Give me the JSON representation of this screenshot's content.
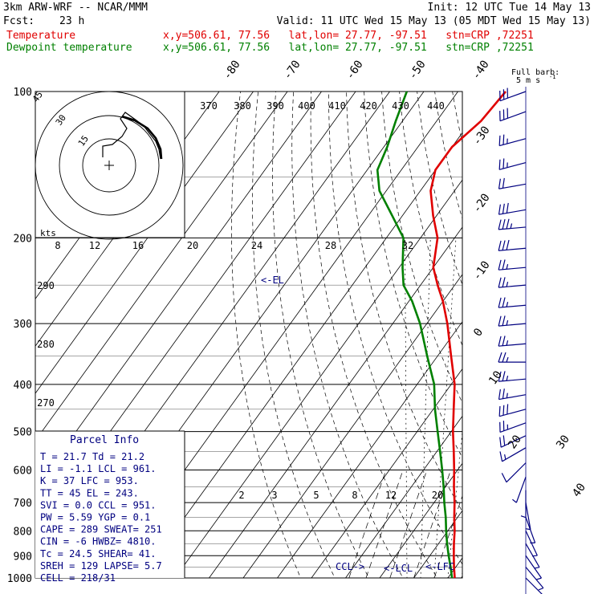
{
  "header": {
    "model": "3km ARW-WRF -- NCAR/MMM",
    "init": "Init: 12 UTC Tue 14 May 13",
    "fcst_label": "Fcst:",
    "fcst_value": "23 h",
    "valid": "Valid: 11 UTC Wed 15 May 13 (05 MDT Wed 15 May 13)",
    "temp_label": "Temperature",
    "temp_info": "x,y=506.61, 77.56   lat,lon= 27.77, -97.51   stn=CRP ,72251",
    "dew_label": "Dewpoint temperature",
    "dew_info": "x,y=506.61, 77.56   lat,lon= 27.77, -97.51   stn=CRP ,72251"
  },
  "colors": {
    "temperature": "#e00000",
    "dewpoint": "#008000",
    "annot": "#000080",
    "grid": "#000000"
  },
  "barb_key": {
    "line1": "Full barb:",
    "line2": "5 m s",
    "sup": "-1"
  },
  "parcel": {
    "title": "Parcel Info",
    "rows": [
      "T  =    21.7  Td =  21.2",
      "LI =    -1.1  LCL =  961.",
      "K  =     37  LFC = 953.",
      "TT =     45  EL  = 243.",
      "SVI =    0.0  CCL = 951.",
      "PW =   5.59  YGP =  0.1",
      "CAPE =   289  SWEAT= 251",
      "CIN =     -6  HWBZ= 4810.",
      "Tc =   24.5  SHEAR= 41.",
      "SREH =   129  LAPSE= 5.7",
      "CELL = 218/31"
    ]
  },
  "annotations": {
    "el": "<-EL",
    "ccl": "CCL->",
    "lcl": "<-LCL",
    "lfc": "<-LFC"
  },
  "hodograph": {
    "rings": [
      "15",
      "30",
      "45"
    ],
    "units": "kts"
  },
  "chart_data": {
    "type": "skew-t",
    "pressure_levels": [
      100,
      200,
      300,
      400,
      500,
      600,
      700,
      800,
      900,
      1000
    ],
    "isotherm_labels": [
      "-80",
      "-70",
      "-60",
      "-50",
      "-40",
      "-30",
      "-20",
      "-10",
      "0",
      "10",
      "20",
      "30",
      "40"
    ],
    "dry_adiabat_labels": [
      "370",
      "380",
      "390",
      "400",
      "410",
      "420",
      "430",
      "440"
    ],
    "theta_left_labels": [
      "290",
      "280",
      "270"
    ],
    "mixing_ratio_labels": [
      "2",
      "3",
      "5",
      "8",
      "12",
      "20"
    ],
    "wetbulb_labels": [
      "8",
      "12",
      "16",
      "20",
      "24",
      "28",
      "32"
    ],
    "temperature": [
      {
        "p": 1000,
        "t": 22.0
      },
      {
        "p": 950,
        "t": 19.5
      },
      {
        "p": 900,
        "t": 17.0
      },
      {
        "p": 850,
        "t": 14.5
      },
      {
        "p": 800,
        "t": 12.0
      },
      {
        "p": 750,
        "t": 9.0
      },
      {
        "p": 700,
        "t": 6.0
      },
      {
        "p": 650,
        "t": 2.5
      },
      {
        "p": 600,
        "t": -1.0
      },
      {
        "p": 550,
        "t": -5.0
      },
      {
        "p": 500,
        "t": -9.5
      },
      {
        "p": 450,
        "t": -14.0
      },
      {
        "p": 400,
        "t": -19.0
      },
      {
        "p": 350,
        "t": -26.0
      },
      {
        "p": 300,
        "t": -34.0
      },
      {
        "p": 270,
        "t": -40.0
      },
      {
        "p": 250,
        "t": -45.0
      },
      {
        "p": 230,
        "t": -50.0
      },
      {
        "p": 200,
        "t": -55.0
      },
      {
        "p": 180,
        "t": -61.0
      },
      {
        "p": 160,
        "t": -67.0
      },
      {
        "p": 145,
        "t": -70.0
      },
      {
        "p": 130,
        "t": -70.0
      },
      {
        "p": 115,
        "t": -67.0
      },
      {
        "p": 100,
        "t": -66.0
      }
    ],
    "dewpoint": [
      {
        "p": 1000,
        "t": 21.2
      },
      {
        "p": 950,
        "t": 18.5
      },
      {
        "p": 900,
        "t": 15.5
      },
      {
        "p": 850,
        "t": 12.5
      },
      {
        "p": 800,
        "t": 9.5
      },
      {
        "p": 750,
        "t": 6.5
      },
      {
        "p": 700,
        "t": 3.0
      },
      {
        "p": 650,
        "t": -0.5
      },
      {
        "p": 600,
        "t": -4.5
      },
      {
        "p": 550,
        "t": -9.0
      },
      {
        "p": 500,
        "t": -14.0
      },
      {
        "p": 450,
        "t": -19.5
      },
      {
        "p": 400,
        "t": -25.0
      },
      {
        "p": 350,
        "t": -33.0
      },
      {
        "p": 300,
        "t": -42.0
      },
      {
        "p": 270,
        "t": -49.0
      },
      {
        "p": 250,
        "t": -55.0
      },
      {
        "p": 230,
        "t": -59.0
      },
      {
        "p": 200,
        "t": -65.0
      },
      {
        "p": 180,
        "t": -73.0
      },
      {
        "p": 160,
        "t": -82.0
      },
      {
        "p": 145,
        "t": -87.0
      },
      {
        "p": 130,
        "t": -89.0
      },
      {
        "p": 115,
        "t": -92.0
      },
      {
        "p": 100,
        "t": -95.0
      }
    ],
    "wind_barbs": [
      {
        "p": 100,
        "dir": 250,
        "spd": 30
      },
      {
        "p": 110,
        "dir": 250,
        "spd": 30
      },
      {
        "p": 125,
        "dir": 255,
        "spd": 25
      },
      {
        "p": 140,
        "dir": 255,
        "spd": 25
      },
      {
        "p": 155,
        "dir": 260,
        "spd": 20
      },
      {
        "p": 175,
        "dir": 260,
        "spd": 30
      },
      {
        "p": 190,
        "dir": 265,
        "spd": 35
      },
      {
        "p": 210,
        "dir": 265,
        "spd": 30
      },
      {
        "p": 230,
        "dir": 265,
        "spd": 25
      },
      {
        "p": 250,
        "dir": 265,
        "spd": 25
      },
      {
        "p": 275,
        "dir": 265,
        "spd": 25
      },
      {
        "p": 300,
        "dir": 265,
        "spd": 25
      },
      {
        "p": 330,
        "dir": 265,
        "spd": 25
      },
      {
        "p": 360,
        "dir": 270,
        "spd": 25
      },
      {
        "p": 390,
        "dir": 265,
        "spd": 25
      },
      {
        "p": 420,
        "dir": 260,
        "spd": 25
      },
      {
        "p": 450,
        "dir": 255,
        "spd": 30
      },
      {
        "p": 480,
        "dir": 250,
        "spd": 25
      },
      {
        "p": 510,
        "dir": 245,
        "spd": 20
      },
      {
        "p": 540,
        "dir": 240,
        "spd": 15
      },
      {
        "p": 580,
        "dir": 225,
        "spd": 10
      },
      {
        "p": 620,
        "dir": 200,
        "spd": 5
      },
      {
        "p": 660,
        "dir": 180,
        "spd": 5
      },
      {
        "p": 700,
        "dir": 170,
        "spd": 5
      },
      {
        "p": 750,
        "dir": 160,
        "spd": 5
      },
      {
        "p": 800,
        "dir": 155,
        "spd": 5
      },
      {
        "p": 850,
        "dir": 150,
        "spd": 5
      },
      {
        "p": 900,
        "dir": 145,
        "spd": 5
      },
      {
        "p": 950,
        "dir": 140,
        "spd": 5
      },
      {
        "p": 1000,
        "dir": 135,
        "spd": 5
      }
    ]
  }
}
